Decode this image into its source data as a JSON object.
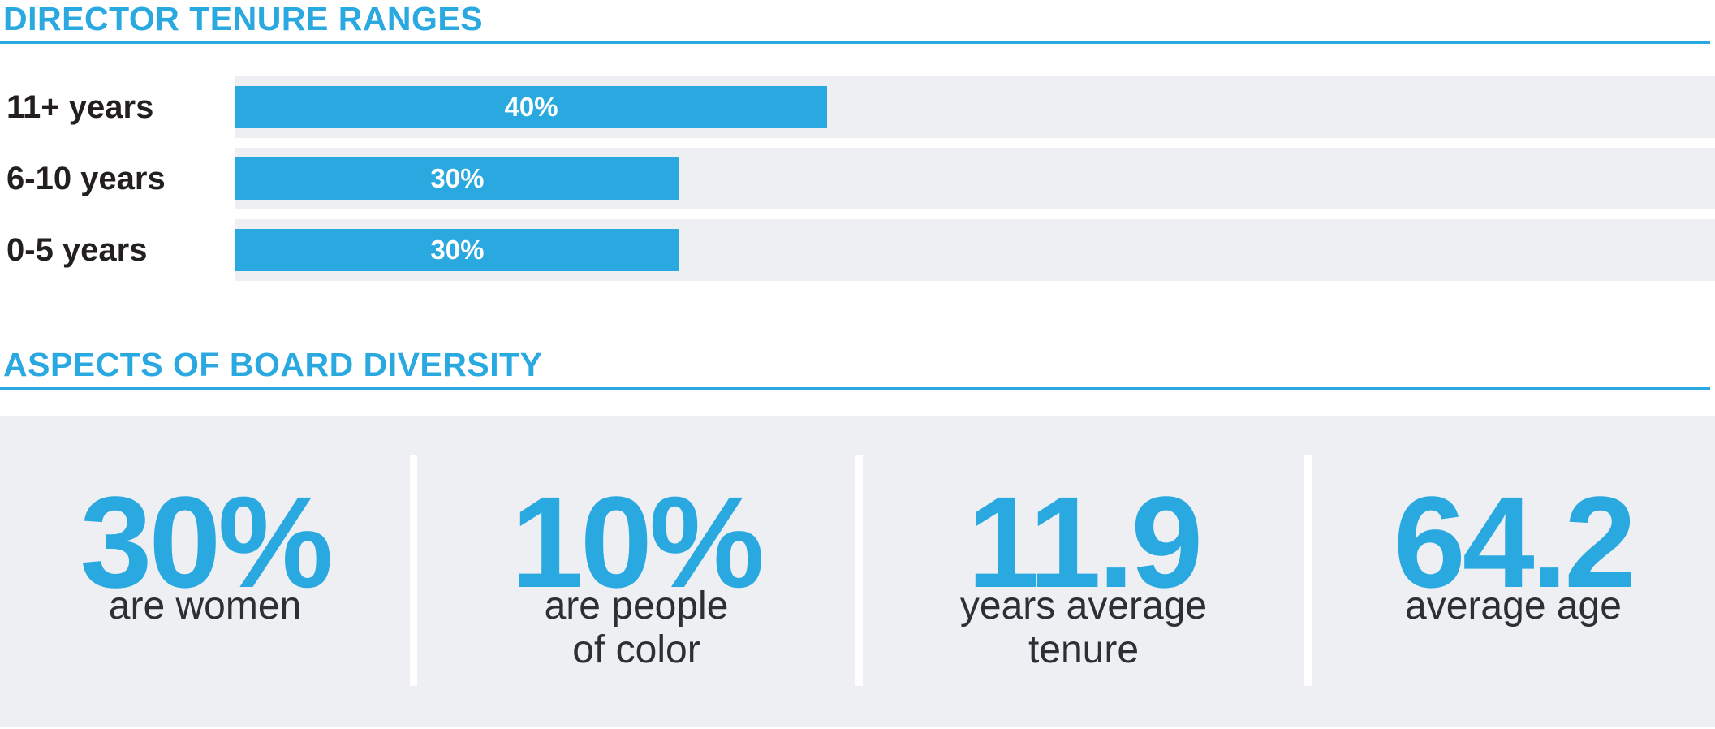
{
  "colors": {
    "accent": "#29a9e0",
    "track": "#edeff3",
    "panel": "#edeff3",
    "barValueText": "#ffffff",
    "rowLabel": "#231f20",
    "statLabel": "#2e2f34",
    "background": "#ffffff"
  },
  "tenure": {
    "title": "DIRECTOR TENURE RANGES",
    "rows": [
      {
        "label": "11+ years",
        "value": 40,
        "value_label": "40%"
      },
      {
        "label": "6-10 years",
        "value": 30,
        "value_label": "30%"
      },
      {
        "label": "0-5 years",
        "value": 30,
        "value_label": "30%"
      }
    ]
  },
  "diversity": {
    "title": "ASPECTS OF BOARD DIVERSITY",
    "stats": [
      {
        "value": "30%",
        "label": "are women"
      },
      {
        "value": "10%",
        "label": "are people\nof color"
      },
      {
        "value": "11.9",
        "label": "years average\ntenure"
      },
      {
        "value": "64.2",
        "label": "average age"
      }
    ]
  },
  "chart_data": [
    {
      "type": "bar",
      "orientation": "horizontal",
      "title": "DIRECTOR TENURE RANGES",
      "categories": [
        "11+ years",
        "6-10 years",
        "0-5 years"
      ],
      "values": [
        40,
        30,
        30
      ],
      "unit": "percent",
      "xlim": [
        0,
        100
      ],
      "data_labels": [
        "40%",
        "30%",
        "30%"
      ],
      "grid": false,
      "legend": false,
      "bar_color": "#29a9e0",
      "track_color": "#edeff3"
    },
    {
      "type": "table",
      "title": "ASPECTS OF BOARD DIVERSITY",
      "stats": [
        {
          "value": "30%",
          "label": "are women"
        },
        {
          "value": "10%",
          "label": "are people of color"
        },
        {
          "value": "11.9",
          "label": "years average tenure"
        },
        {
          "value": "64.2",
          "label": "average age"
        }
      ]
    }
  ]
}
